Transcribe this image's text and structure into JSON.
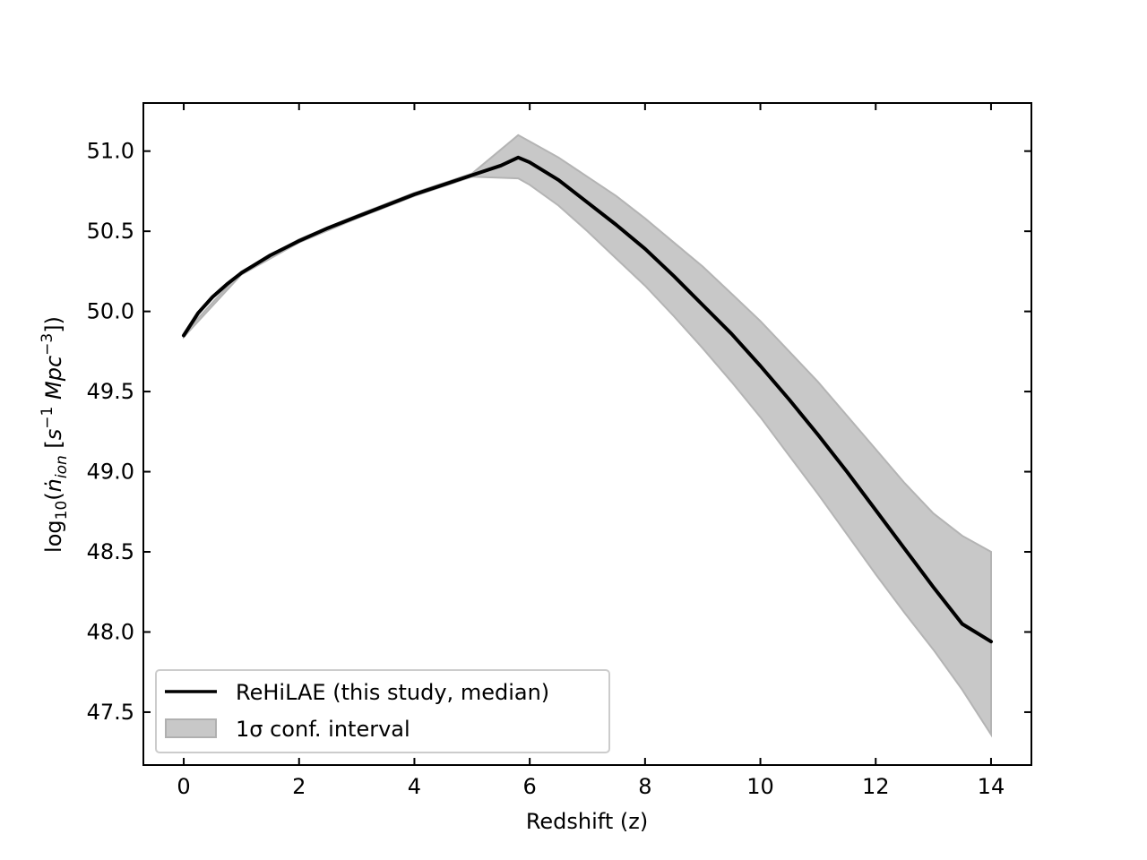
{
  "chart_data": {
    "type": "line",
    "title": "",
    "xlabel": "Redshift (z)",
    "ylabel": {
      "prefix": "log",
      "prefix_sub": "10",
      "open": "(",
      "var": "ṅ",
      "var_sub": "ion",
      "units_open": " [",
      "s": "s",
      "s_exp": "−1",
      "mpc": " Mpc",
      "mpc_exp": "−3",
      "close": "])"
    },
    "xlim": [
      -0.7,
      14.7
    ],
    "ylim": [
      47.17,
      51.3
    ],
    "xticks": [
      0,
      2,
      4,
      6,
      8,
      10,
      12,
      14
    ],
    "xtick_labels": [
      "0",
      "2",
      "4",
      "6",
      "8",
      "10",
      "12",
      "14"
    ],
    "yticks": [
      47.5,
      48.0,
      48.5,
      49.0,
      49.5,
      50.0,
      50.5,
      51.0
    ],
    "ytick_labels": [
      "47.5",
      "48.0",
      "48.5",
      "49.0",
      "49.5",
      "50.0",
      "50.5",
      "51.0"
    ],
    "grid": false,
    "legend_position": "lower-left",
    "series": [
      {
        "name": "ReHiLAE (this study, median)",
        "kind": "line",
        "color": "#000000",
        "x": [
          0.0,
          0.25,
          0.5,
          0.75,
          1.0,
          1.5,
          2.0,
          2.5,
          3.0,
          3.5,
          4.0,
          4.5,
          5.0,
          5.5,
          5.8,
          6.0,
          6.5,
          7.0,
          7.5,
          8.0,
          8.5,
          9.0,
          9.5,
          10.0,
          10.5,
          11.0,
          11.5,
          12.0,
          12.5,
          13.0,
          13.5,
          14.0
        ],
        "y": [
          49.85,
          49.99,
          50.09,
          50.17,
          50.24,
          50.35,
          50.44,
          50.52,
          50.59,
          50.66,
          50.73,
          50.79,
          50.85,
          50.91,
          50.96,
          50.93,
          50.82,
          50.68,
          50.54,
          50.39,
          50.22,
          50.04,
          49.86,
          49.66,
          49.45,
          49.23,
          49.0,
          48.76,
          48.52,
          48.28,
          48.05,
          47.94
        ]
      },
      {
        "name": "1σ conf. interval",
        "kind": "band",
        "color": "#c8c8c8",
        "x": [
          0.0,
          1.0,
          2.0,
          3.0,
          4.0,
          5.0,
          5.8,
          6.0,
          6.5,
          7.0,
          7.5,
          8.0,
          8.5,
          9.0,
          9.5,
          10.0,
          10.5,
          11.0,
          11.5,
          12.0,
          12.5,
          13.0,
          13.5,
          14.0
        ],
        "y_lower": [
          49.84,
          50.23,
          50.43,
          50.58,
          50.72,
          50.84,
          50.83,
          50.79,
          50.66,
          50.5,
          50.33,
          50.16,
          49.97,
          49.77,
          49.56,
          49.34,
          49.1,
          48.86,
          48.61,
          48.36,
          48.12,
          47.89,
          47.64,
          47.36
        ],
        "y_upper": [
          49.86,
          50.25,
          50.45,
          50.6,
          50.74,
          50.86,
          51.1,
          51.06,
          50.96,
          50.84,
          50.72,
          50.58,
          50.43,
          50.28,
          50.11,
          49.94,
          49.75,
          49.56,
          49.35,
          49.14,
          48.93,
          48.74,
          48.6,
          48.5
        ]
      }
    ]
  }
}
